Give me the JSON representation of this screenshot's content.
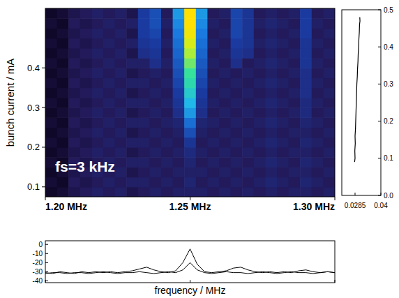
{
  "chart_data": [
    {
      "type": "heatmap",
      "ylabel": "bunch current / mA",
      "annotation": "fs=3 kHz",
      "xlim": [
        1.2,
        1.3
      ],
      "xticks": [
        {
          "value": 1.2,
          "label": "1.20 MHz"
        },
        {
          "value": 1.25,
          "label": "1.25 MHz"
        },
        {
          "value": 1.3,
          "label": "1.30 MHz"
        }
      ],
      "ylim": [
        0.075,
        0.55
      ],
      "yticks": [
        0.1,
        0.2,
        0.3,
        0.4
      ],
      "xbins": [
        1.2,
        1.204,
        1.208,
        1.212,
        1.216,
        1.22,
        1.224,
        1.228,
        1.232,
        1.236,
        1.24,
        1.244,
        1.248,
        1.252,
        1.256,
        1.26,
        1.264,
        1.268,
        1.272,
        1.276,
        1.28,
        1.284,
        1.288,
        1.292,
        1.296,
        1.3
      ],
      "ybins": [
        0.075,
        0.1,
        0.125,
        0.15,
        0.175,
        0.2,
        0.225,
        0.25,
        0.275,
        0.3,
        0.325,
        0.35,
        0.375,
        0.4,
        0.425,
        0.45,
        0.475,
        0.5,
        0.525,
        0.55
      ],
      "zlim": [
        -40,
        0
      ],
      "cells": [
        [
          -36,
          -35,
          -33,
          -32,
          -31,
          -32,
          -31,
          -33,
          -32,
          -31,
          -32,
          -31,
          -31,
          -31,
          -32,
          -31,
          -32,
          -31,
          -32,
          -31,
          -32,
          -31,
          -31,
          -32,
          -31
        ],
        [
          -35,
          -36,
          -32,
          -33,
          -32,
          -31,
          -32,
          -31,
          -31,
          -32,
          -31,
          -32,
          -30,
          -32,
          -31,
          -32,
          -31,
          -32,
          -31,
          -30,
          -31,
          -32,
          -30,
          -31,
          -32
        ],
        [
          -36,
          -35,
          -33,
          -32,
          -31,
          -32,
          -31,
          -33,
          -32,
          -31,
          -32,
          -31,
          -31,
          -31,
          -32,
          -31,
          -32,
          -31,
          -32,
          -31,
          -32,
          -31,
          -31,
          -32,
          -31
        ],
        [
          -35,
          -36,
          -32,
          -33,
          -32,
          -31,
          -32,
          -31,
          -31,
          -32,
          -31,
          -32,
          -30,
          -32,
          -31,
          -32,
          -31,
          -32,
          -31,
          -30,
          -31,
          -32,
          -30,
          -31,
          -32
        ],
        [
          -36,
          -35,
          -33,
          -32,
          -31,
          -32,
          -31,
          -33,
          -32,
          -31,
          -32,
          -31,
          -29,
          -31,
          -32,
          -31,
          -32,
          -31,
          -32,
          -31,
          -32,
          -31,
          -31,
          -32,
          -31
        ],
        [
          -35,
          -36,
          -32,
          -33,
          -32,
          -31,
          -32,
          -31,
          -31,
          -32,
          -31,
          -32,
          -27,
          -32,
          -31,
          -32,
          -31,
          -32,
          -31,
          -30,
          -31,
          -32,
          -30,
          -31,
          -32
        ],
        [
          -36,
          -35,
          -33,
          -32,
          -31,
          -32,
          -31,
          -33,
          -32,
          -31,
          -32,
          -31,
          -24,
          -31,
          -32,
          -31,
          -32,
          -31,
          -32,
          -31,
          -32,
          -31,
          -31,
          -32,
          -31
        ],
        [
          -35,
          -36,
          -32,
          -33,
          -32,
          -31,
          -32,
          -31,
          -31,
          -32,
          -31,
          -30,
          -21,
          -30,
          -31,
          -32,
          -31,
          -32,
          -31,
          -30,
          -31,
          -32,
          -30,
          -31,
          -32
        ],
        [
          -36,
          -35,
          -33,
          -32,
          -31,
          -32,
          -31,
          -33,
          -32,
          -31,
          -32,
          -28,
          -18,
          -28,
          -32,
          -31,
          -32,
          -31,
          -32,
          -31,
          -32,
          -31,
          -29,
          -32,
          -31
        ],
        [
          -35,
          -36,
          -32,
          -33,
          -32,
          -31,
          -32,
          -31,
          -31,
          -32,
          -31,
          -27,
          -16,
          -27,
          -31,
          -32,
          -31,
          -32,
          -31,
          -30,
          -31,
          -32,
          -29,
          -31,
          -32
        ],
        [
          -36,
          -35,
          -33,
          -32,
          -31,
          -32,
          -31,
          -33,
          -32,
          -31,
          -32,
          -26,
          -14,
          -26,
          -32,
          -31,
          -32,
          -31,
          -32,
          -31,
          -32,
          -31,
          -28,
          -32,
          -31
        ],
        [
          -35,
          -36,
          -32,
          -33,
          -32,
          -31,
          -32,
          -31,
          -31,
          -32,
          -31,
          -25,
          -12,
          -25,
          -31,
          -32,
          -31,
          -32,
          -31,
          -30,
          -31,
          -32,
          -28,
          -31,
          -32
        ],
        [
          -36,
          -35,
          -33,
          -32,
          -31,
          -32,
          -31,
          -33,
          -32,
          -31,
          -32,
          -24,
          -11,
          -24,
          -32,
          -31,
          -32,
          -31,
          -32,
          -31,
          -32,
          -31,
          -28,
          -32,
          -31
        ],
        [
          -35,
          -36,
          -32,
          -33,
          -32,
          -31,
          -32,
          -31,
          -31,
          -28,
          -31,
          -23,
          -9,
          -23,
          -31,
          -32,
          -28,
          -32,
          -31,
          -30,
          -31,
          -32,
          -27,
          -31,
          -32
        ],
        [
          -36,
          -35,
          -33,
          -32,
          -31,
          -32,
          -31,
          -33,
          -28,
          -27,
          -32,
          -22,
          -7,
          -22,
          -32,
          -31,
          -27,
          -28,
          -32,
          -31,
          -32,
          -31,
          -27,
          -32,
          -31
        ],
        [
          -35,
          -36,
          -32,
          -33,
          -32,
          -31,
          -32,
          -31,
          -27,
          -26,
          -31,
          -21,
          -5,
          -21,
          -31,
          -32,
          -26,
          -27,
          -31,
          -30,
          -31,
          -32,
          -27,
          -31,
          -32
        ],
        [
          -36,
          -35,
          -33,
          -32,
          -31,
          -32,
          -31,
          -33,
          -26,
          -25,
          -32,
          -20,
          -3,
          -20,
          -32,
          -31,
          -25,
          -27,
          -32,
          -31,
          -32,
          -31,
          -26,
          -32,
          -31
        ],
        [
          -35,
          -36,
          -32,
          -33,
          -32,
          -31,
          -32,
          -31,
          -26,
          -24,
          -31,
          -19,
          -2,
          -19,
          -31,
          -32,
          -25,
          -27,
          -31,
          -30,
          -31,
          -32,
          -26,
          -31,
          -32
        ],
        [
          -36,
          -35,
          -33,
          -32,
          -31,
          -32,
          -31,
          -33,
          -26,
          -24,
          -32,
          -18,
          -2,
          -18,
          -32,
          -31,
          -25,
          -27,
          -32,
          -31,
          -32,
          -31,
          -26,
          -32,
          -31
        ]
      ]
    },
    {
      "type": "line",
      "color": "#000000",
      "xlim": [
        0.0226,
        0.04
      ],
      "xticks": [
        0.0285,
        0.04
      ],
      "ylim": [
        0,
        0.5
      ],
      "yticks": [
        {
          "value": 0,
          "label": "0.0"
        },
        0.1,
        0.2,
        0.3,
        0.4,
        0.5
      ],
      "x": [
        0.0283,
        0.0285,
        0.0284,
        0.0286,
        0.0285,
        0.0287,
        0.0288,
        0.0289,
        0.029,
        0.0291,
        0.0292,
        0.0293,
        0.0295,
        0.0296,
        0.0298,
        0.0299,
        0.0301,
        0.0302,
        0.0304,
        0.0305,
        0.0307,
        0.0306
      ],
      "values": [
        0.09,
        0.1,
        0.12,
        0.14,
        0.16,
        0.18,
        0.2,
        0.22,
        0.24,
        0.26,
        0.28,
        0.3,
        0.32,
        0.34,
        0.36,
        0.38,
        0.4,
        0.42,
        0.44,
        0.46,
        0.47,
        0.48
      ]
    },
    {
      "type": "line",
      "xlabel": "frequency / MHz",
      "tick_labels": "y",
      "xlim": [
        1.2,
        1.3
      ],
      "xticks": [
        1.2,
        1.25,
        1.3
      ],
      "ylim": [
        -42,
        4
      ],
      "yticks": [
        0,
        -10,
        -20,
        -30,
        -40
      ],
      "x": [
        1.2,
        1.2025,
        1.205,
        1.2075,
        1.21,
        1.2125,
        1.215,
        1.2175,
        1.22,
        1.2225,
        1.225,
        1.2275,
        1.23,
        1.2325,
        1.235,
        1.2375,
        1.24,
        1.2425,
        1.245,
        1.2475,
        1.25,
        1.2525,
        1.255,
        1.2575,
        1.26,
        1.2625,
        1.265,
        1.2675,
        1.27,
        1.2725,
        1.275,
        1.2775,
        1.28,
        1.2825,
        1.285,
        1.2875,
        1.29,
        1.2925,
        1.295,
        1.2975,
        1.3
      ],
      "series": [
        {
          "color": "#000000",
          "values": [
            -31,
            -32,
            -30,
            -31,
            -32,
            -30,
            -31,
            -30,
            -31,
            -30,
            -31,
            -30,
            -29,
            -27,
            -25,
            -28,
            -30,
            -31,
            -29,
            -20,
            -5,
            -22,
            -30,
            -31,
            -30,
            -29,
            -26,
            -25,
            -28,
            -30,
            -31,
            -30,
            -31,
            -30,
            -31,
            -29,
            -28,
            -30,
            -31,
            -30,
            -31
          ]
        },
        {
          "color": "#000000",
          "values": [
            -32,
            -31,
            -31,
            -32,
            -31,
            -31,
            -32,
            -31,
            -30,
            -31,
            -32,
            -31,
            -31,
            -30,
            -31,
            -32,
            -31,
            -30,
            -31,
            -28,
            -20,
            -28,
            -31,
            -32,
            -31,
            -30,
            -31,
            -31,
            -32,
            -31,
            -30,
            -31,
            -32,
            -31,
            -30,
            -31,
            -31,
            -32,
            -31,
            -30,
            -31
          ]
        }
      ]
    }
  ]
}
